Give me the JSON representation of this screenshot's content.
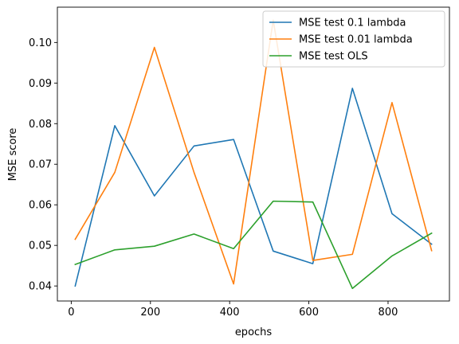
{
  "chart_data": {
    "type": "line",
    "title": "",
    "xlabel": "epochs",
    "ylabel": "MSE score",
    "xlim": [
      -35,
      955
    ],
    "ylim": [
      0.0363,
      0.1087
    ],
    "xticks": [
      0,
      200,
      400,
      600,
      800
    ],
    "xtick_labels": [
      "0",
      "200",
      "400",
      "600",
      "800"
    ],
    "yticks": [
      0.04,
      0.05,
      0.06,
      0.07,
      0.08,
      0.09,
      0.1
    ],
    "ytick_labels": [
      "0.04",
      "0.05",
      "0.06",
      "0.07",
      "0.08",
      "0.09",
      "0.10"
    ],
    "grid": false,
    "legend_position": "top-right",
    "x": [
      10,
      110,
      210,
      310,
      410,
      510,
      610,
      710,
      810,
      910
    ],
    "series": [
      {
        "name": "MSE test 0.1 lambda",
        "color": "#1f77b4",
        "values": [
          0.04,
          0.0795,
          0.0622,
          0.0745,
          0.0761,
          0.0486,
          0.0455,
          0.0887,
          0.0578,
          0.0503
        ]
      },
      {
        "name": "MSE test 0.01 lambda",
        "color": "#ff7f0e",
        "values": [
          0.0515,
          0.068,
          0.0988,
          0.068,
          0.0405,
          0.1055,
          0.0463,
          0.0478,
          0.0852,
          0.0487
        ]
      },
      {
        "name": "MSE test OLS",
        "color": "#2ca02c",
        "values": [
          0.0453,
          0.0489,
          0.0498,
          0.0528,
          0.0492,
          0.0609,
          0.0607,
          0.0394,
          0.0474,
          0.053
        ]
      }
    ]
  }
}
